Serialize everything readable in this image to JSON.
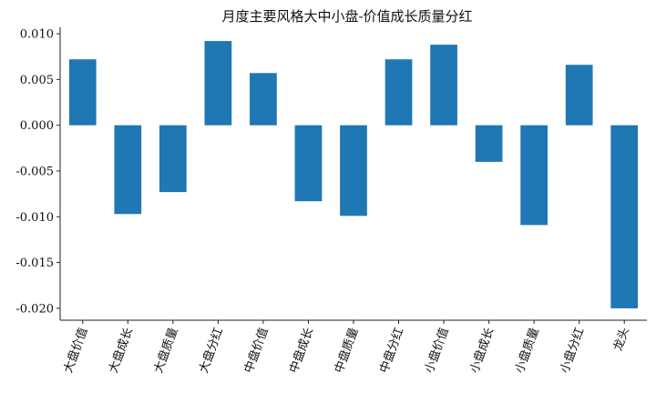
{
  "chart_data": {
    "type": "bar",
    "title": "月度主要风格大中小盘-价值成长质量分红",
    "xlabel": "",
    "ylabel": "",
    "categories": [
      "大盘价值",
      "大盘成长",
      "大盘质量",
      "大盘分红",
      "中盘价值",
      "中盘成长",
      "中盘质量",
      "中盘分红",
      "小盘价值",
      "小盘成长",
      "小盘质量",
      "小盘分红",
      "龙头"
    ],
    "values": [
      0.0072,
      -0.0097,
      -0.0073,
      0.0092,
      0.0057,
      -0.0083,
      -0.0099,
      0.0072,
      0.0088,
      -0.004,
      -0.0109,
      0.0066,
      -0.02
    ],
    "yticks": [
      "0.010",
      "0.005",
      "0.000",
      "-0.005",
      "-0.010",
      "-0.015",
      "-0.020"
    ],
    "ylim": [
      -0.0213,
      0.0107
    ],
    "bar_color": "#1f77b4",
    "grid": false,
    "legend": "none"
  }
}
